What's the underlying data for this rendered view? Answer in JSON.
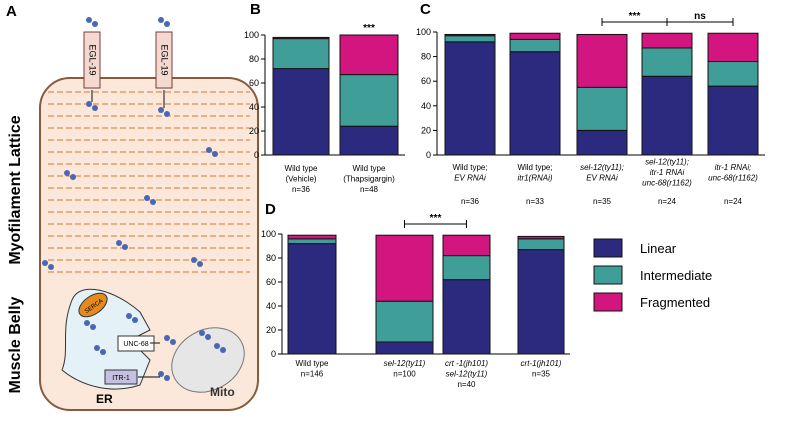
{
  "panel_a": {
    "label": "A",
    "channels": [
      "EGL-19",
      "EGL-19"
    ],
    "regions": [
      "Myofilament Lattice",
      "Muscle Belly"
    ],
    "proteins": [
      "SERCA",
      "UNC-68",
      "ITR-1"
    ],
    "organelles": [
      "ER",
      "Mito"
    ]
  },
  "chart_data": [
    {
      "panel": "B",
      "type": "bar",
      "stacked": true,
      "ylim": [
        0,
        100
      ],
      "yticks": [
        0,
        20,
        40,
        60,
        80,
        100
      ],
      "categories": [
        [
          "Wild type",
          "(Vehicle)"
        ],
        [
          "Wild type",
          "(Thapsigargin)"
        ]
      ],
      "n_labels": [
        "n=36",
        "n=48"
      ],
      "series": [
        {
          "color": "#2c2a7e",
          "values": [
            72,
            24
          ]
        },
        {
          "color": "#3f9e97",
          "values": [
            25,
            43
          ]
        },
        {
          "color": "#d3157f",
          "values": [
            1,
            33
          ]
        }
      ],
      "annotations": [
        {
          "text": "***",
          "bars": [
            1
          ]
        }
      ]
    },
    {
      "panel": "C",
      "type": "bar",
      "stacked": true,
      "ylim": [
        0,
        100
      ],
      "yticks": [
        0,
        20,
        40,
        60,
        80,
        100
      ],
      "categories": [
        [
          "Wild type;",
          "EV RNAi"
        ],
        [
          "Wild type;",
          "itr1(RNAi)"
        ],
        [
          "sel-12(ty11);",
          "EV RNAi"
        ],
        [
          "sel-12(ty11);",
          "itr-1 RNAi",
          "unc-68(r1162)"
        ],
        [
          "itr-1 RNAi;",
          "unc-68(r1162)"
        ]
      ],
      "n_labels": [
        "n=36",
        "n=33",
        "n=35",
        "n=24",
        "n=24"
      ],
      "series": [
        {
          "color": "#2c2a7e",
          "values": [
            92,
            84,
            20,
            64,
            56
          ]
        },
        {
          "color": "#3f9e97",
          "values": [
            5,
            10,
            35,
            23,
            20
          ]
        },
        {
          "color": "#d3157f",
          "values": [
            1,
            5,
            43,
            12,
            23
          ]
        }
      ],
      "annotations": [
        {
          "text": "***",
          "bars": [
            2,
            3
          ]
        },
        {
          "text": "ns",
          "bars": [
            3,
            4
          ]
        }
      ]
    },
    {
      "panel": "D",
      "type": "bar",
      "stacked": true,
      "ylim": [
        0,
        100
      ],
      "yticks": [
        0,
        20,
        40,
        60,
        80,
        100
      ],
      "categories": [
        [
          "Wild type"
        ],
        [
          "sel-12(ty11)"
        ],
        [
          "crt -1(jh101)",
          "sel-12(ty11)"
        ],
        [
          "crt-1(jh101)"
        ]
      ],
      "n_labels": [
        "n=146",
        "n=100",
        "n=40",
        "n=35"
      ],
      "series": [
        {
          "name": "Linear",
          "color": "#2c2a7e",
          "values": [
            92,
            10,
            62,
            87
          ]
        },
        {
          "name": "Intermediate",
          "color": "#3f9e97",
          "values": [
            4,
            34,
            20,
            9
          ]
        },
        {
          "name": "Fragmented",
          "color": "#d3157f",
          "values": [
            3,
            55,
            17,
            2
          ]
        }
      ],
      "annotations": [
        {
          "text": "***",
          "bars": [
            1,
            2
          ]
        }
      ],
      "legend": "right"
    }
  ]
}
